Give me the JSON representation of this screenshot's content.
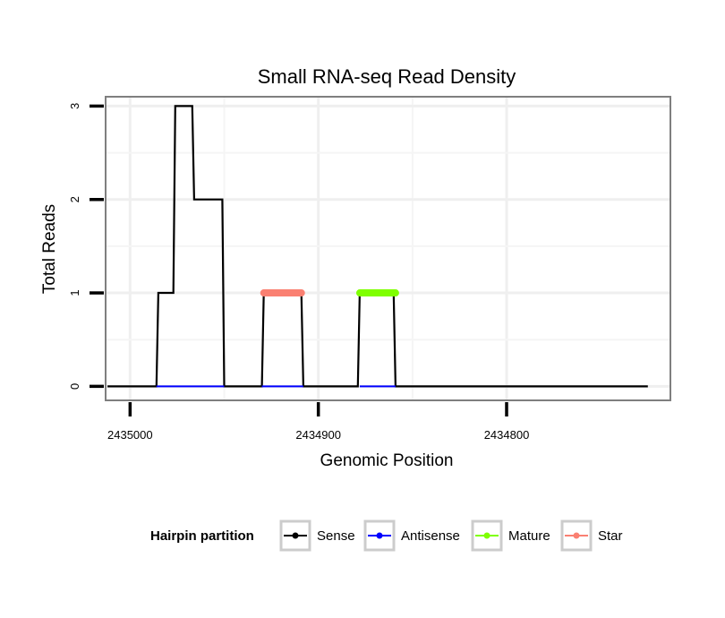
{
  "chart_data": {
    "type": "line",
    "title": "Small RNA-seq Read Density",
    "xlabel": "Genomic Position",
    "ylabel": "Total Reads",
    "x_reversed": true,
    "xlim": [
      2435013,
      2434713
    ],
    "ylim": [
      -0.15,
      3.1
    ],
    "x_ticks": [
      2435000,
      2434900,
      2434800
    ],
    "x_tick_labels": [
      "2435000",
      "2434900",
      "2434800"
    ],
    "y_ticks": [
      0,
      1,
      2,
      3
    ],
    "y_tick_labels": [
      "0",
      "1",
      "2",
      "3"
    ],
    "grid": true,
    "series": [
      {
        "name": "Sense",
        "color": "#000000",
        "x": [
          2435012,
          2434986,
          2434985,
          2434977,
          2434976,
          2434967,
          2434966,
          2434951,
          2434950,
          2434930,
          2434929,
          2434909,
          2434908,
          2434879,
          2434878,
          2434860,
          2434859,
          2434725
        ],
        "y": [
          0,
          0,
          1,
          1,
          3,
          3,
          2,
          2,
          0,
          0,
          1,
          1,
          0,
          0,
          1,
          1,
          0,
          0
        ]
      },
      {
        "name": "Antisense",
        "color": "#0000ff",
        "x": [
          2434986,
          2434950,
          2434930,
          2434908,
          2434878,
          2434859
        ],
        "y": [
          0,
          0,
          0,
          0,
          0,
          0
        ]
      },
      {
        "name": "Mature",
        "color": "#7fff00",
        "x": [
          2434878,
          2434859
        ],
        "y": [
          1,
          1
        ]
      },
      {
        "name": "Star",
        "color": "#fa8072",
        "x": [
          2434929,
          2434909
        ],
        "y": [
          1,
          1
        ]
      }
    ]
  },
  "legend": {
    "title": "Hairpin partition",
    "items": [
      {
        "label": "Sense",
        "color": "#000000"
      },
      {
        "label": "Antisense",
        "color": "#0000ff"
      },
      {
        "label": "Mature",
        "color": "#7fff00"
      },
      {
        "label": "Star",
        "color": "#fa8072"
      }
    ]
  }
}
